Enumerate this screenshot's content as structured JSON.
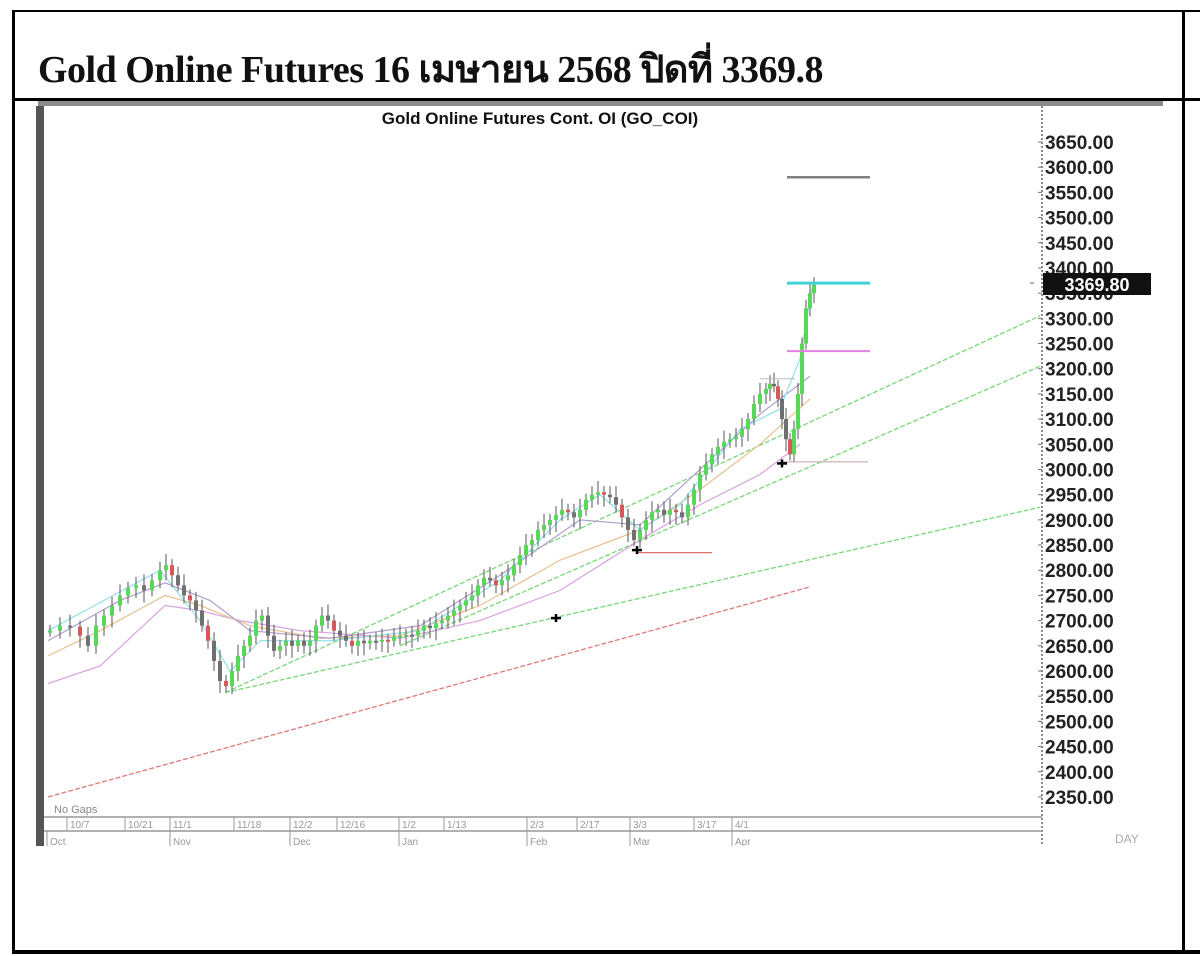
{
  "page": {
    "heading": "Gold Online Futures 16 เมษายน 2568 ปิดที่ 3369.8"
  },
  "chart_data": {
    "type": "candlestick",
    "title": "Gold Online Futures Cont. OI (GO_COI)",
    "xlabel": "",
    "ylabel": "",
    "period_label": "DAY",
    "gaps_label": "No Gaps",
    "last_price_label": "3369.80",
    "last_price": 3369.8,
    "ylim": [
      2350,
      3650
    ],
    "y_ticks": [
      "3650.00",
      "3600.00",
      "3550.00",
      "3500.00",
      "3450.00",
      "3400.00",
      "3350.00",
      "3300.00",
      "3250.00",
      "3200.00",
      "3150.00",
      "3100.00",
      "3050.00",
      "3000.00",
      "2950.00",
      "2900.00",
      "2850.00",
      "2800.00",
      "2750.00",
      "2700.00",
      "2650.00",
      "2600.00",
      "2550.00",
      "2500.00",
      "2450.00",
      "2400.00",
      "2350.00"
    ],
    "x_ticks_day": [
      "10/7",
      "10/21",
      "11/1",
      "11/18",
      "12/2",
      "12/16",
      "1/2",
      "1/13",
      "2/3",
      "2/17",
      "3/3",
      "3/17",
      "4/1"
    ],
    "x_ticks_month": [
      "Oct",
      "Nov",
      "Dec",
      "Jan",
      "Feb",
      "Mar",
      "Apr"
    ],
    "grid": false,
    "legend": null,
    "price_path": {
      "x_dates": [
        "10/1",
        "10/7",
        "10/14",
        "10/21",
        "10/30",
        "11/1",
        "11/8",
        "11/14",
        "11/18",
        "11/25",
        "12/2",
        "12/9",
        "12/16",
        "12/23",
        "1/2",
        "1/9",
        "1/13",
        "1/20",
        "1/27",
        "2/3",
        "2/10",
        "2/17",
        "2/24",
        "3/3",
        "3/10",
        "3/17",
        "3/24",
        "4/1",
        "4/4",
        "4/8",
        "4/10",
        "4/14",
        "4/16"
      ],
      "close": [
        2680,
        2660,
        2700,
        2750,
        2790,
        2780,
        2700,
        2580,
        2620,
        2680,
        2660,
        2700,
        2650,
        2640,
        2660,
        2680,
        2720,
        2760,
        2780,
        2820,
        2880,
        2930,
        2950,
        2870,
        2910,
        2990,
        3040,
        3120,
        3040,
        3010,
        3190,
        3330,
        3369.8
      ]
    },
    "horizontal_levels": [
      {
        "name": "upper-target",
        "value": 3580,
        "color": "#808080"
      },
      {
        "name": "close-level",
        "value": 3370,
        "color": "#40d0d8"
      },
      {
        "name": "mid-level",
        "value": 3235,
        "color": "#e080e0"
      },
      {
        "name": "low-level-apr",
        "value": 3015,
        "color": "#c0a0a0"
      },
      {
        "name": "low-level-mar",
        "value": 2835,
        "color": "#e07070"
      }
    ],
    "markers": [
      {
        "date": "4/7",
        "value": 3012,
        "type": "cross"
      },
      {
        "date": "2/28",
        "value": 2840,
        "type": "cross"
      },
      {
        "date": "2/3",
        "value": 2705,
        "type": "cross"
      }
    ],
    "trendlines": [
      {
        "name": "green-main-1",
        "from": [
          2560,
          "11/14"
        ],
        "to": [
          3300,
          "end"
        ],
        "color": "#60d060"
      },
      {
        "name": "green-main-2",
        "from": [
          2640,
          "12/30"
        ],
        "to": [
          3200,
          "end"
        ],
        "color": "#60d060"
      },
      {
        "name": "green-long",
        "from": [
          2560,
          "11/14"
        ],
        "to": [
          2920,
          "end"
        ],
        "color": "#60d060"
      },
      {
        "name": "red-long-ma",
        "from": [
          2345,
          "10/1"
        ],
        "to": [
          2765,
          "4/16"
        ],
        "color": "#e06060"
      }
    ]
  }
}
